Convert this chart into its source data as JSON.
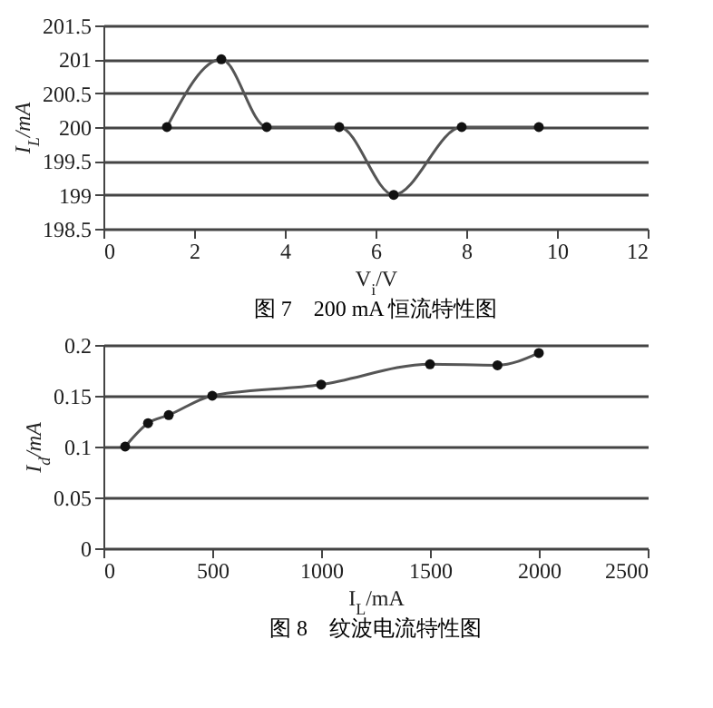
{
  "chart_data": [
    {
      "type": "line",
      "title": "图 7　200 mA 恒流特性图",
      "xlabel": "V$_{i}$/V",
      "ylabel": "I$_{L}$/mA",
      "x": [
        1.4,
        2.6,
        3.6,
        5.2,
        6.4,
        7.9,
        9.6
      ],
      "series": [
        {
          "color": "#555555",
          "values": [
            200,
            201,
            200,
            200,
            199,
            200,
            200
          ]
        }
      ],
      "xlim": [
        0,
        12
      ],
      "xticks": [
        0,
        2,
        4,
        6,
        8,
        10,
        12
      ],
      "ylim": [
        198.5,
        201.5
      ],
      "yticks": [
        198.5,
        199,
        199.5,
        200,
        200.5,
        201,
        201.5
      ],
      "grid": "y",
      "marker": "circle",
      "line_style": "solid"
    },
    {
      "type": "line",
      "title": "图 8　纹波电流特性图",
      "xlabel": "I$_{L}$/mA",
      "ylabel": "I$_{d}$/mA",
      "x": [
        100,
        205,
        300,
        500,
        1000,
        1500,
        1810,
        2000
      ],
      "series": [
        {
          "color": "#555555",
          "values": [
            0.1,
            0.123,
            0.131,
            0.15,
            0.161,
            0.181,
            0.18,
            0.192
          ]
        }
      ],
      "xlim": [
        0,
        2500
      ],
      "xticks": [
        0,
        500,
        1000,
        1500,
        2000,
        2500
      ],
      "ylim": [
        0,
        0.2
      ],
      "yticks": [
        0,
        0.05,
        0.1,
        0.15,
        0.2
      ],
      "grid": "y",
      "marker": "circle",
      "line_style": "solid"
    }
  ]
}
